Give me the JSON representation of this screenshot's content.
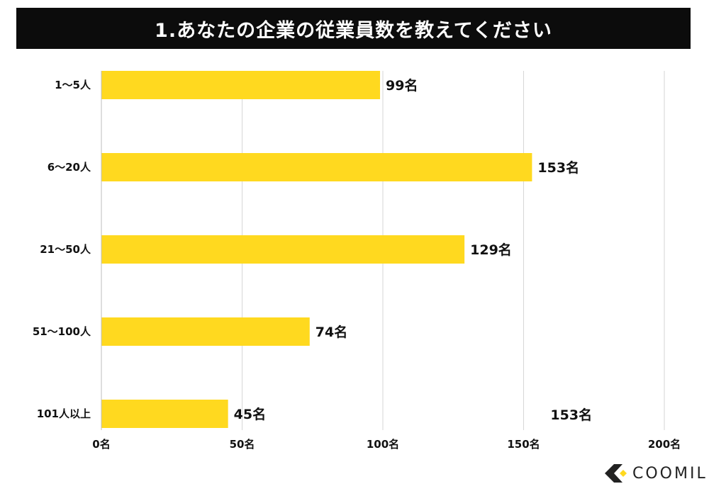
{
  "chart_data": {
    "type": "bar",
    "orientation": "horizontal",
    "title": "1.あなたの企業の従業員数を教えてください",
    "categories": [
      "1〜5人",
      "6〜20人",
      "21〜50人",
      "51〜100人",
      "101人以上"
    ],
    "values": [
      99,
      153,
      129,
      74,
      45
    ],
    "value_labels": [
      "99名",
      "153名",
      "129名",
      "74名",
      "45名"
    ],
    "x_ticks": [
      0,
      50,
      100,
      150,
      200
    ],
    "x_tick_labels": [
      "0名",
      "50名",
      "100名",
      "150名",
      "200名"
    ],
    "xlim": [
      0,
      200
    ],
    "grid": "vertical",
    "bar_color": "#FFD91F",
    "extra_annotation": "153名"
  },
  "brand": {
    "name": "COOMIL",
    "accent": "#FFD91F",
    "mark_color": "#222222"
  }
}
